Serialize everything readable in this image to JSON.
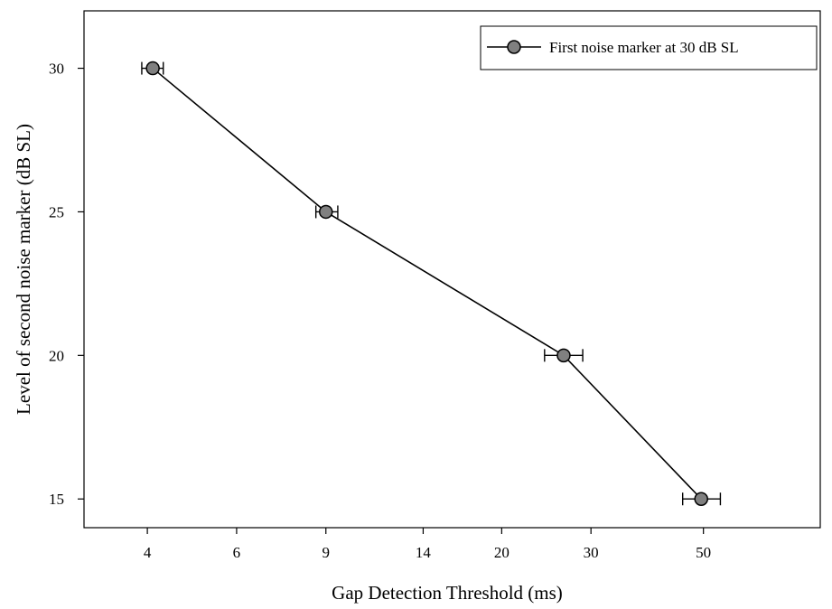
{
  "chart_data": {
    "type": "line",
    "xlabel": "Gap Detection Threshold (ms)",
    "ylabel": "Level of second noise marker (dB SL)",
    "x_scale": "log",
    "x_ticks": [
      4,
      6,
      9,
      14,
      20,
      30,
      50
    ],
    "y_ticks": [
      15,
      20,
      25,
      30
    ],
    "xlim": [
      3,
      85
    ],
    "ylim": [
      14,
      32
    ],
    "grid": false,
    "legend_position": "top-right",
    "series": [
      {
        "name": "First noise marker at 30 dB SL",
        "color": "#000000",
        "marker_fill": "#808080",
        "points": [
          {
            "x": 4.1,
            "y": 30,
            "x_err_low": 0.2,
            "x_err_high": 0.2
          },
          {
            "x": 9.0,
            "y": 25,
            "x_err_low": 0.4,
            "x_err_high": 0.5
          },
          {
            "x": 26.5,
            "y": 20,
            "x_err_low": 2.2,
            "x_err_high": 2.4
          },
          {
            "x": 49.5,
            "y": 15,
            "x_err_low": 4.0,
            "x_err_high": 4.5
          }
        ]
      }
    ]
  }
}
